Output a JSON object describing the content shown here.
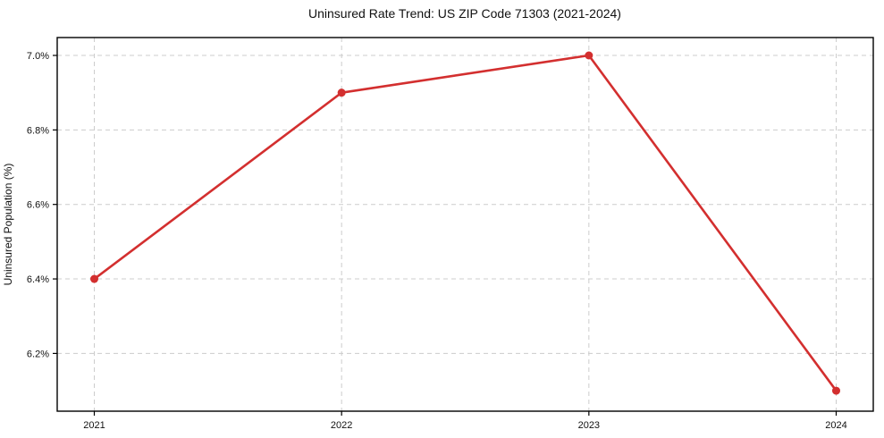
{
  "chart": {
    "title": "Uninsured Rate Trend: US ZIP Code 71303 (2021-2024)",
    "ylabel": "Uninsured Population (%)"
  },
  "chart_data": {
    "type": "line",
    "title": "Uninsured Rate Trend: US ZIP Code 71303 (2021-2024)",
    "xlabel": "",
    "ylabel": "Uninsured Population (%)",
    "x": [
      2021,
      2022,
      2023,
      2024
    ],
    "values": [
      6.4,
      6.9,
      7.0,
      6.1
    ],
    "xticks": [
      2021,
      2022,
      2023,
      2024
    ],
    "xtick_labels": [
      "2021",
      "2022",
      "2023",
      "2024"
    ],
    "yticks": [
      6.2,
      6.4,
      6.6,
      6.8,
      7.0
    ],
    "ytick_labels": [
      "6.2%",
      "6.4%",
      "6.6%",
      "6.8%",
      "7.0%"
    ],
    "xlim": [
      2020.85,
      2024.15
    ],
    "ylim": [
      6.045,
      7.048
    ],
    "grid": true,
    "grid_style": "dashed",
    "legend": "none",
    "line_color": "#d32f2f",
    "marker": "circle",
    "grid_color": "#cccccc",
    "spine_color": "#000000",
    "text_color": "#111111",
    "background": "#ffffff"
  }
}
